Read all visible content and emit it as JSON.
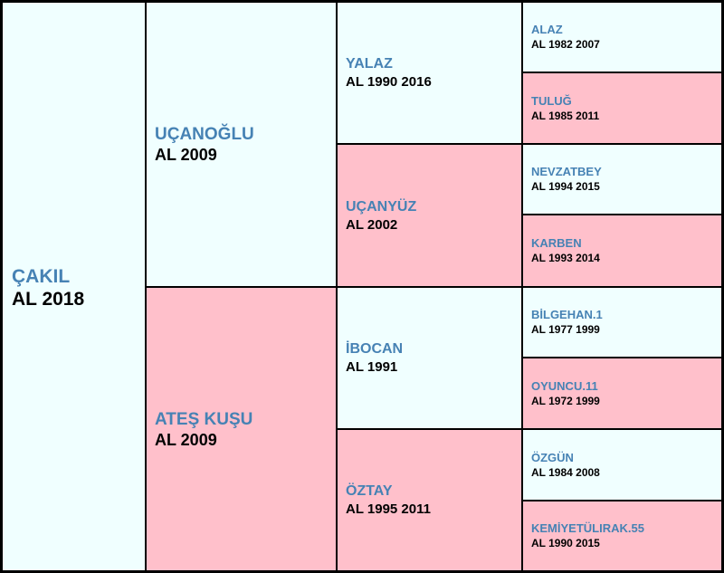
{
  "colors": {
    "male_background": "#f0ffff",
    "female_background": "#ffc0cb",
    "name_text": "#4682b4",
    "info_text": "#000000",
    "border": "#000000"
  },
  "pedigree": {
    "subject": {
      "name": "ÇAKIL",
      "info": "AL 2018",
      "sex": "male"
    },
    "sire": {
      "name": "UÇANOĞLU",
      "info": "AL 2009",
      "sex": "male"
    },
    "dam": {
      "name": "ATEŞ KUŞU",
      "info": "AL 2009",
      "sex": "female"
    },
    "sire_sire": {
      "name": "YALAZ",
      "info": "AL 1990 2016",
      "sex": "male"
    },
    "sire_dam": {
      "name": "UÇANYÜZ",
      "info": "AL 2002",
      "sex": "female"
    },
    "dam_sire": {
      "name": "İBOCAN",
      "info": "AL 1991",
      "sex": "male"
    },
    "dam_dam": {
      "name": "ÖZTAY",
      "info": "AL 1995 2011",
      "sex": "female"
    },
    "sire_sire_sire": {
      "name": "ALAZ",
      "info": "AL 1982 2007",
      "sex": "male"
    },
    "sire_sire_dam": {
      "name": "TULUĞ",
      "info": "AL 1985 2011",
      "sex": "female"
    },
    "sire_dam_sire": {
      "name": "NEVZATBEY",
      "info": "AL 1994 2015",
      "sex": "male"
    },
    "sire_dam_dam": {
      "name": "KARBEN",
      "info": "AL 1993 2014",
      "sex": "female"
    },
    "dam_sire_sire": {
      "name": "BİLGEHAN.1",
      "info": "AL 1977 1999",
      "sex": "male"
    },
    "dam_sire_dam": {
      "name": "OYUNCU.11",
      "info": "AL 1972 1999",
      "sex": "female"
    },
    "dam_dam_sire": {
      "name": "ÖZGÜN",
      "info": "AL 1984 2008",
      "sex": "male"
    },
    "dam_dam_dam": {
      "name": "KEMİYETÜLIRAK.55",
      "info": "AL 1990 2015",
      "sex": "female"
    }
  }
}
